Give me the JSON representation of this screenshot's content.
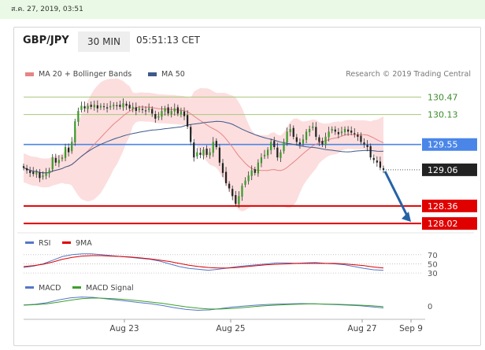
{
  "date_bar": "ส.ค. 27, 2019, 03:51",
  "header": {
    "pair": "GBP/JPY",
    "timeframe": "30 MIN",
    "clock": "05:51:13 CET"
  },
  "colors": {
    "ma20": "#e68585",
    "ma50": "#3d5a8a",
    "band": "#fbd6d6",
    "rsi": "#5577c9",
    "ma9": "#e00000",
    "macd": "#5577c9",
    "signal": "#3c9f2a",
    "resistance": "#a8c77b",
    "pivot": "#4a86e8",
    "support": "#e00000",
    "arrow": "#2563a6"
  },
  "chart_data": [
    {
      "type": "candlestick",
      "symbol": "GBP/JPY",
      "legend": [
        {
          "name": "MA 20 + Bollinger Bands"
        },
        {
          "name": "MA 50"
        }
      ],
      "watermark": "Research © 2019 Trading Central",
      "x_ticks": [
        "Aug 23",
        "Aug 25",
        "Aug 27",
        "Sep 9"
      ],
      "ylim": [
        127.9,
        130.75
      ],
      "levels": [
        {
          "label": "130.47",
          "value": 130.47,
          "kind": "resistance"
        },
        {
          "label": "130.13",
          "value": 130.13,
          "kind": "resistance"
        },
        {
          "label": "129.55",
          "value": 129.55,
          "kind": "pivot"
        },
        {
          "label": "129.06",
          "value": 129.06,
          "kind": "last"
        },
        {
          "label": "128.36",
          "value": 128.36,
          "kind": "support"
        },
        {
          "label": "128.02",
          "value": 128.02,
          "kind": "support"
        }
      ],
      "close": [
        129.1,
        129.05,
        129.0,
        128.98,
        129.02,
        128.9,
        128.95,
        129.0,
        129.05,
        129.3,
        129.2,
        129.25,
        129.3,
        129.5,
        129.4,
        129.6,
        130.0,
        130.2,
        130.3,
        130.25,
        130.3,
        130.28,
        130.32,
        130.25,
        130.3,
        130.28,
        130.25,
        130.3,
        130.32,
        130.3,
        130.28,
        130.35,
        130.3,
        130.25,
        130.28,
        130.2,
        130.25,
        130.22,
        130.2,
        130.25,
        130.15,
        130.05,
        130.1,
        130.2,
        130.25,
        130.15,
        130.2,
        130.25,
        130.15,
        130.2,
        130.1,
        129.9,
        129.6,
        129.3,
        129.4,
        129.35,
        129.45,
        129.35,
        129.4,
        129.6,
        129.5,
        129.2,
        129.0,
        128.8,
        128.7,
        128.55,
        128.4,
        128.55,
        128.75,
        128.85,
        128.95,
        129.05,
        129.0,
        129.2,
        129.3,
        129.35,
        129.45,
        129.6,
        129.5,
        129.3,
        129.4,
        129.6,
        129.8,
        129.85,
        129.7,
        129.6,
        129.55,
        129.65,
        129.8,
        129.85,
        129.9,
        129.7,
        129.6,
        129.55,
        129.7,
        129.8,
        129.85,
        129.8,
        129.75,
        129.8,
        129.85,
        129.8,
        129.78,
        129.75,
        129.7,
        129.6,
        129.55,
        129.5,
        129.3,
        129.25,
        129.2,
        129.1,
        129.06
      ]
    },
    {
      "type": "line",
      "name": "RSI",
      "legend": [
        {
          "name": "RSI"
        },
        {
          "name": "9MA"
        }
      ],
      "y_ticks": [
        "70",
        "50",
        "30"
      ],
      "ylim": [
        25,
        80
      ],
      "series": [
        {
          "name": "RSI",
          "values": [
            42,
            45,
            50,
            58,
            66,
            70,
            72,
            72,
            70,
            68,
            66,
            64,
            62,
            60,
            56,
            50,
            44,
            40,
            38,
            36,
            38,
            41,
            44,
            46,
            48,
            50,
            52,
            52,
            51,
            52,
            53,
            51,
            50,
            48,
            44,
            40,
            37,
            36
          ]
        },
        {
          "name": "9MA",
          "values": [
            44,
            46,
            49,
            54,
            60,
            64,
            67,
            68,
            68,
            67,
            66,
            65,
            63,
            61,
            58,
            55,
            51,
            47,
            44,
            42,
            41,
            41,
            42,
            44,
            46,
            48,
            49,
            50,
            51,
            51,
            51,
            51,
            51,
            50,
            48,
            46,
            43,
            41
          ]
        }
      ]
    },
    {
      "type": "line",
      "name": "MACD",
      "legend": [
        {
          "name": "MACD"
        },
        {
          "name": "MACD Signal"
        }
      ],
      "y_ticks": [
        "0"
      ],
      "ylim": [
        -0.4,
        0.55
      ],
      "series": [
        {
          "name": "MACD",
          "values": [
            0.05,
            0.08,
            0.15,
            0.28,
            0.38,
            0.42,
            0.4,
            0.34,
            0.28,
            0.22,
            0.16,
            0.1,
            0.02,
            -0.08,
            -0.16,
            -0.2,
            -0.18,
            -0.12,
            -0.05,
            0.0,
            0.04,
            0.07,
            0.09,
            0.1,
            0.11,
            0.1,
            0.08,
            0.06,
            0.04,
            0.01,
            -0.04,
            -0.09
          ]
        },
        {
          "name": "MACD Signal",
          "values": [
            0.04,
            0.06,
            0.1,
            0.18,
            0.27,
            0.34,
            0.37,
            0.36,
            0.33,
            0.29,
            0.24,
            0.18,
            0.12,
            0.04,
            -0.04,
            -0.1,
            -0.14,
            -0.14,
            -0.11,
            -0.07,
            -0.02,
            0.02,
            0.05,
            0.07,
            0.09,
            0.1,
            0.09,
            0.08,
            0.06,
            0.04,
            0.01,
            -0.03
          ]
        }
      ]
    }
  ]
}
